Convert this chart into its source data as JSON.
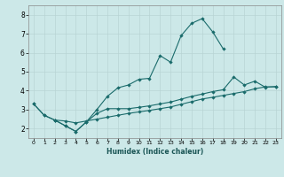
{
  "xlabel": "Humidex (Indice chaleur)",
  "bg_color": "#cce8e8",
  "line_color": "#1a6b6b",
  "grid_color": "#b8d4d4",
  "xlim": [
    -0.5,
    23.5
  ],
  "ylim": [
    1.5,
    8.5
  ],
  "xticks": [
    0,
    1,
    2,
    3,
    4,
    5,
    6,
    7,
    8,
    9,
    10,
    11,
    12,
    13,
    14,
    15,
    16,
    17,
    18,
    19,
    20,
    21,
    22,
    23
  ],
  "yticks": [
    2,
    3,
    4,
    5,
    6,
    7,
    8
  ],
  "line1_x": [
    0,
    1,
    2,
    3,
    4,
    5,
    6,
    7,
    8,
    9,
    10,
    11,
    12,
    13,
    14,
    15,
    16,
    17,
    18
  ],
  "line1_y": [
    3.3,
    2.7,
    2.45,
    2.15,
    1.85,
    2.35,
    3.0,
    3.7,
    4.15,
    4.3,
    4.6,
    4.65,
    5.85,
    5.5,
    6.9,
    7.55,
    7.8,
    7.1,
    6.2
  ],
  "line2_x": [
    0,
    1,
    2,
    3,
    4,
    5,
    6,
    7,
    8,
    9,
    10,
    11,
    12,
    13,
    14,
    15,
    16,
    17,
    18,
    19,
    20,
    21,
    22,
    23
  ],
  "line2_y": [
    3.3,
    2.7,
    2.45,
    2.4,
    2.3,
    2.4,
    2.5,
    2.6,
    2.7,
    2.8,
    2.88,
    2.96,
    3.05,
    3.14,
    3.28,
    3.42,
    3.56,
    3.65,
    3.75,
    3.85,
    3.95,
    4.1,
    4.2,
    4.2
  ],
  "line3_x": [
    2,
    3,
    4,
    5,
    6,
    7,
    8,
    9,
    10,
    11,
    12,
    13,
    14,
    15,
    16,
    17,
    18,
    19,
    20,
    21,
    22,
    23
  ],
  "line3_y": [
    2.45,
    2.15,
    1.85,
    2.35,
    2.8,
    3.05,
    3.05,
    3.05,
    3.12,
    3.2,
    3.3,
    3.4,
    3.55,
    3.7,
    3.82,
    3.95,
    4.05,
    4.72,
    4.3,
    4.5,
    4.18,
    4.22
  ]
}
